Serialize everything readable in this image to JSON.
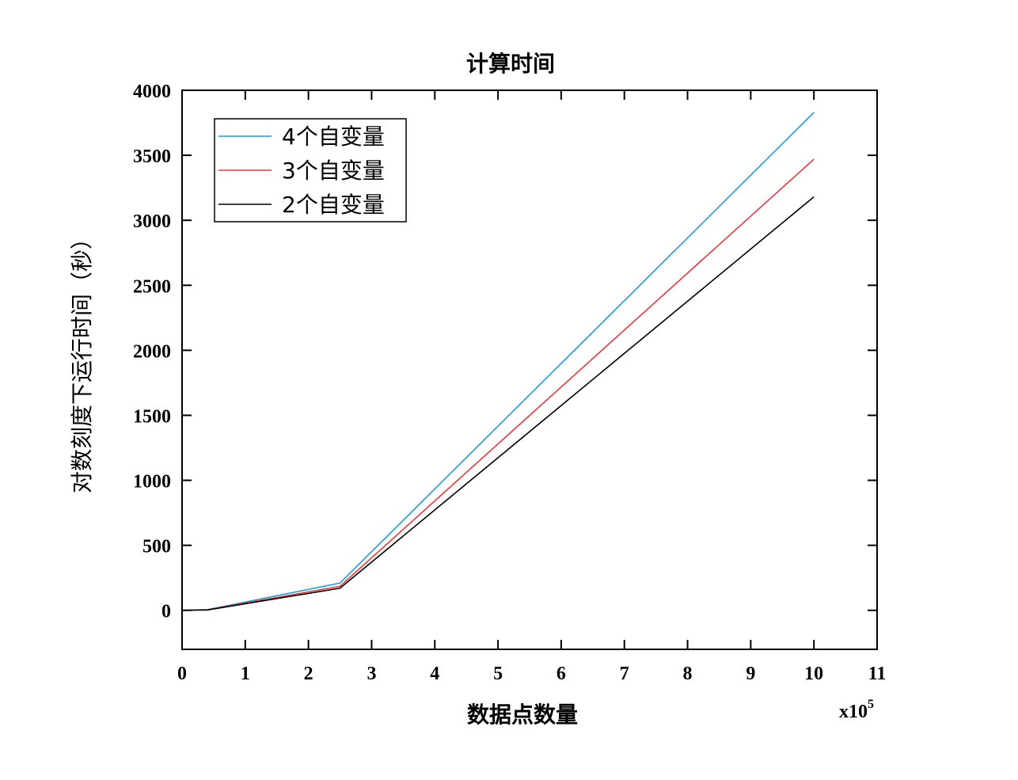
{
  "chart_data": {
    "type": "line",
    "title": "计算时间",
    "xlabel": "数据点数量",
    "ylabel": "对数刻度下运行时间（秒）",
    "x_multiplier_label": "x10",
    "x_multiplier_exp": "5",
    "xlim": [
      0,
      11
    ],
    "ylim": [
      -300,
      4000
    ],
    "xticks": [
      0,
      1,
      2,
      3,
      4,
      5,
      6,
      7,
      8,
      9,
      10,
      11
    ],
    "yticks": [
      0,
      500,
      1000,
      1500,
      2000,
      2500,
      3000,
      3500,
      4000
    ],
    "grid": false,
    "legend_position": "top-left",
    "series": [
      {
        "name": "4个自变量",
        "color": "#1f9bd8",
        "x": [
          0,
          0.4,
          2.5,
          10
        ],
        "y": [
          0,
          5,
          210,
          3830
        ]
      },
      {
        "name": "3个自变量",
        "color": "#e8383d",
        "x": [
          0,
          0.4,
          2.5,
          10
        ],
        "y": [
          0,
          4,
          185,
          3470
        ]
      },
      {
        "name": "2个自变量",
        "color": "#000000",
        "x": [
          0,
          0.4,
          2.5,
          10
        ],
        "y": [
          0,
          3,
          170,
          3180
        ]
      }
    ]
  }
}
